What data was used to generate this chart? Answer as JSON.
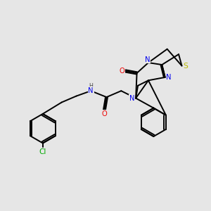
{
  "background_color": "#e6e6e6",
  "bond_color": "#000000",
  "atom_colors": {
    "N": "#0000ee",
    "O": "#ee0000",
    "S": "#bbbb00",
    "Cl": "#00aa00",
    "H": "#444444"
  },
  "figsize": [
    3.0,
    3.0
  ],
  "dpi": 100,
  "lw": 1.4,
  "fs": 7.2
}
